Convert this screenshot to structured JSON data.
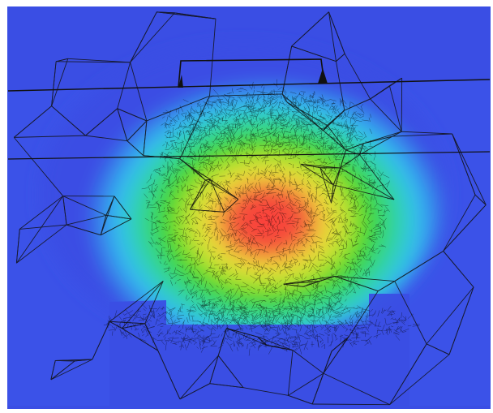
{
  "figure": {
    "kind": "finite-element-simulation",
    "colormap": [
      "#3b4ee6",
      "#3f67ee",
      "#34c3f0",
      "#2fd98a",
      "#3ed62c",
      "#9be02a",
      "#f2f03a",
      "#f0b72a",
      "#ef4a3c"
    ],
    "background_color": "#3a4ee4",
    "border_color": "#ffffff",
    "mesh_line_color": "#111111"
  }
}
